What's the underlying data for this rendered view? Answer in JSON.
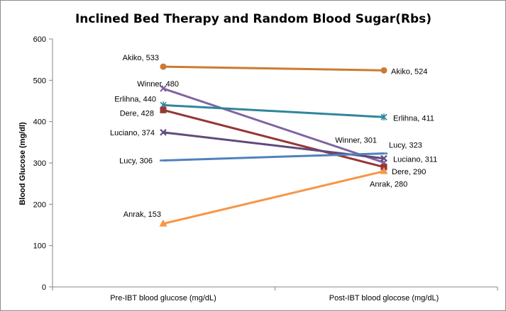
{
  "chart_data": {
    "type": "line",
    "title": "Inclined Bed Therapy and Random Blood Sugar(Rbs)",
    "xlabel": "",
    "ylabel": "Blood Glucose  (mg/dl)",
    "ylim": [
      0,
      600
    ],
    "ytick_step": 100,
    "yticks": [
      "0",
      "100",
      "200",
      "300",
      "400",
      "500",
      "600"
    ],
    "grid": false,
    "legend": "none",
    "categories": [
      "Pre-IBT blood glucose (mg/dL)",
      "Post-IBT blood glocose (mg/dL)"
    ],
    "series": [
      {
        "name": "Akiko",
        "values": [
          533,
          524
        ],
        "color": "#cc7a33",
        "marker": "circle",
        "labels": [
          "Akiko, 533",
          "Akiko, 524"
        ]
      },
      {
        "name": "Winner",
        "values": [
          480,
          301
        ],
        "color": "#8064a2",
        "marker": "x",
        "labels": [
          "Winner, 480",
          "Winner, 301"
        ]
      },
      {
        "name": "Erlihna",
        "values": [
          440,
          411
        ],
        "color": "#31859c",
        "marker": "star",
        "labels": [
          "Erlihna, 440",
          "Erlihna, 411"
        ]
      },
      {
        "name": "Dere",
        "values": [
          428,
          290
        ],
        "color": "#953735",
        "marker": "square",
        "labels": [
          "Dere, 428",
          "Dere, 290"
        ]
      },
      {
        "name": "Luciano",
        "values": [
          374,
          311
        ],
        "color": "#604a7b",
        "marker": "x",
        "labels": [
          "Luciano, 374",
          "Luciano, 311"
        ]
      },
      {
        "name": "Lucy",
        "values": [
          306,
          323
        ],
        "color": "#4f81bd",
        "marker": "dash",
        "labels": [
          "Lucy, 306",
          "Lucy, 323"
        ]
      },
      {
        "name": "Anrak",
        "values": [
          153,
          280
        ],
        "color": "#f79646",
        "marker": "triangle",
        "labels": [
          "Anrak, 153",
          "Anrak, 280"
        ]
      }
    ]
  }
}
